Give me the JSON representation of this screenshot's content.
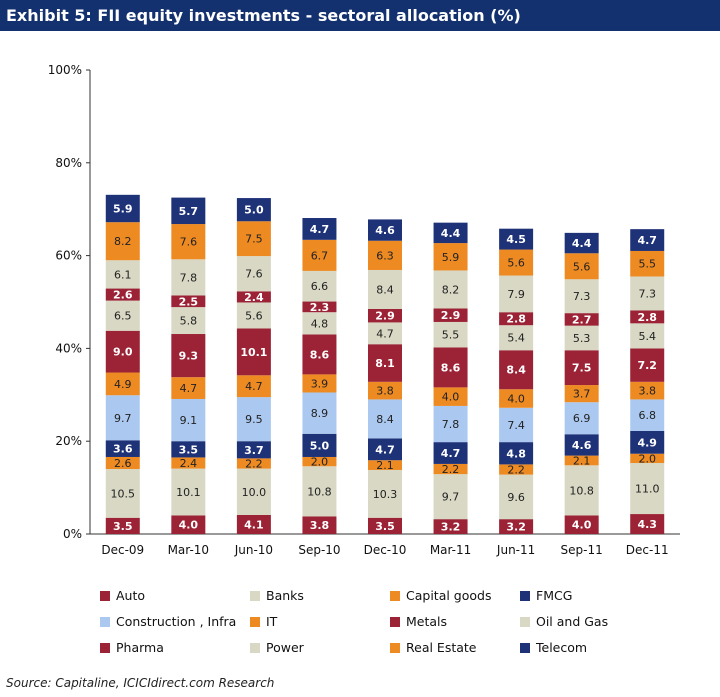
{
  "title": "Exhibit 5: FII equity investments - sectoral allocation (%)",
  "source": "Source: Capitaline, ICICIdirect.com Research",
  "chart_data": {
    "type": "bar",
    "stacked": true,
    "title": "Exhibit 5: FII equity investments - sectoral allocation (%)",
    "xlabel": "",
    "ylabel": "",
    "ylim": [
      0,
      100
    ],
    "yticks": [
      "0%",
      "20%",
      "40%",
      "60%",
      "80%",
      "100%"
    ],
    "categories": [
      "Dec-09",
      "Mar-10",
      "Jun-10",
      "Sep-10",
      "Dec-10",
      "Mar-11",
      "Jun-11",
      "Sep-11",
      "Dec-11"
    ],
    "series": [
      {
        "name": "Auto",
        "color": "#9b2335",
        "values": [
          3.5,
          4.0,
          4.1,
          3.8,
          3.5,
          3.2,
          3.2,
          4.0,
          4.3
        ]
      },
      {
        "name": "Banks",
        "color": "#d8d8c4",
        "values": [
          10.5,
          10.1,
          10.0,
          10.8,
          10.3,
          9.7,
          9.6,
          10.8,
          11.0
        ]
      },
      {
        "name": "Capital goods",
        "color": "#ee8a22",
        "values": [
          2.6,
          2.4,
          2.2,
          2.0,
          2.1,
          2.2,
          2.2,
          2.1,
          2.0
        ]
      },
      {
        "name": "FMCG",
        "color": "#1e3278",
        "values": [
          3.6,
          3.5,
          3.7,
          5.0,
          4.7,
          4.7,
          4.8,
          4.6,
          4.9
        ]
      },
      {
        "name": "Construction , Infra",
        "color": "#abc9f0",
        "values": [
          9.7,
          9.1,
          9.5,
          8.9,
          8.4,
          7.8,
          7.4,
          6.9,
          6.8
        ]
      },
      {
        "name": "IT",
        "color": "#ee8a22",
        "values": [
          4.9,
          4.7,
          4.7,
          3.9,
          3.8,
          4.0,
          4.0,
          3.7,
          3.8
        ]
      },
      {
        "name": "Metals",
        "color": "#9b2335",
        "values": [
          9.0,
          9.3,
          10.1,
          8.6,
          8.1,
          8.6,
          8.4,
          7.5,
          7.2
        ]
      },
      {
        "name": "Oil and Gas",
        "color": "#d8d8c4",
        "values": [
          6.5,
          5.8,
          5.6,
          4.8,
          4.7,
          5.5,
          5.4,
          5.3,
          5.4
        ]
      },
      {
        "name": "Pharma",
        "color": "#9b2335",
        "values": [
          2.6,
          2.5,
          2.4,
          2.3,
          2.9,
          2.9,
          2.8,
          2.7,
          2.8
        ]
      },
      {
        "name": "Power",
        "color": "#d8d8c4",
        "values": [
          6.1,
          7.8,
          7.6,
          6.6,
          8.4,
          8.2,
          7.9,
          7.3,
          7.3
        ]
      },
      {
        "name": "Real Estate",
        "color": "#ee8a22",
        "values": [
          8.2,
          7.6,
          7.5,
          6.7,
          6.3,
          5.9,
          5.6,
          5.6,
          5.5
        ]
      },
      {
        "name": "Telecom",
        "color": "#1e3278",
        "values": [
          5.9,
          5.7,
          5.0,
          4.7,
          4.6,
          4.4,
          4.5,
          4.4,
          4.7
        ]
      }
    ],
    "legend_position": "bottom"
  }
}
